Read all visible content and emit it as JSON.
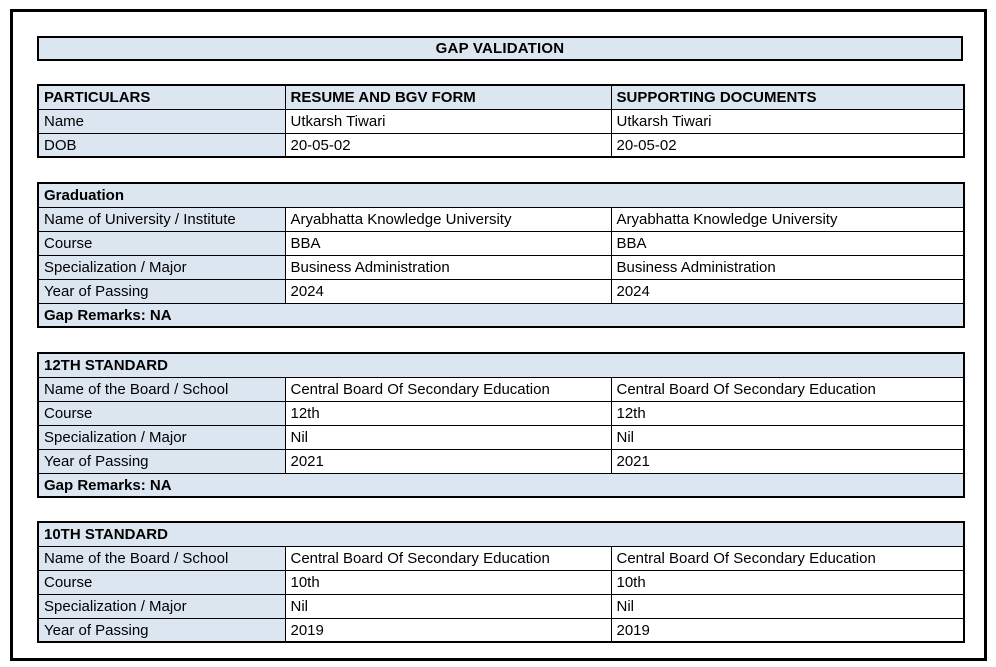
{
  "page_title": "GAP VALIDATION",
  "colors": {
    "section_fill": "#dce6f1",
    "border": "#000000",
    "page_background": "#ffffff"
  },
  "header_table": {
    "columns": [
      "PARTICULARS",
      "RESUME AND BGV FORM",
      "SUPPORTING DOCUMENTS"
    ],
    "rows": [
      {
        "label": "Name",
        "resume": "Utkarsh Tiwari",
        "supporting": "Utkarsh Tiwari"
      },
      {
        "label": "DOB",
        "resume": "20-05-02",
        "supporting": "20-05-02"
      }
    ]
  },
  "sections": [
    {
      "heading": "Graduation",
      "rows": [
        {
          "label": "Name of University / Institute",
          "resume": "Aryabhatta Knowledge University",
          "supporting": "Aryabhatta Knowledge University"
        },
        {
          "label": "Course",
          "resume": "BBA",
          "supporting": "BBA"
        },
        {
          "label": "Specialization / Major",
          "resume": "Business Administration",
          "supporting": "Business Administration"
        },
        {
          "label": "Year of Passing",
          "resume": "2024",
          "supporting": "2024"
        }
      ],
      "gap_remarks": "Gap Remarks: NA"
    },
    {
      "heading": "12TH STANDARD",
      "rows": [
        {
          "label": "Name of the Board / School",
          "resume": "Central Board Of Secondary Education",
          "supporting": "Central Board Of Secondary Education"
        },
        {
          "label": "Course",
          "resume": "12th",
          "supporting": "12th"
        },
        {
          "label": "Specialization / Major",
          "resume": "Nil",
          "supporting": "Nil"
        },
        {
          "label": "Year of Passing",
          "resume": "2021",
          "supporting": "2021"
        }
      ],
      "gap_remarks": "Gap Remarks: NA"
    },
    {
      "heading": "10TH STANDARD",
      "rows": [
        {
          "label": "Name of the Board / School",
          "resume": "Central Board Of Secondary Education",
          "supporting": "Central Board Of Secondary Education"
        },
        {
          "label": "Course",
          "resume": "10th",
          "supporting": "10th"
        },
        {
          "label": "Specialization / Major",
          "resume": "Nil",
          "supporting": "Nil"
        },
        {
          "label": "Year of Passing",
          "resume": "2019",
          "supporting": "2019"
        }
      ]
    }
  ]
}
